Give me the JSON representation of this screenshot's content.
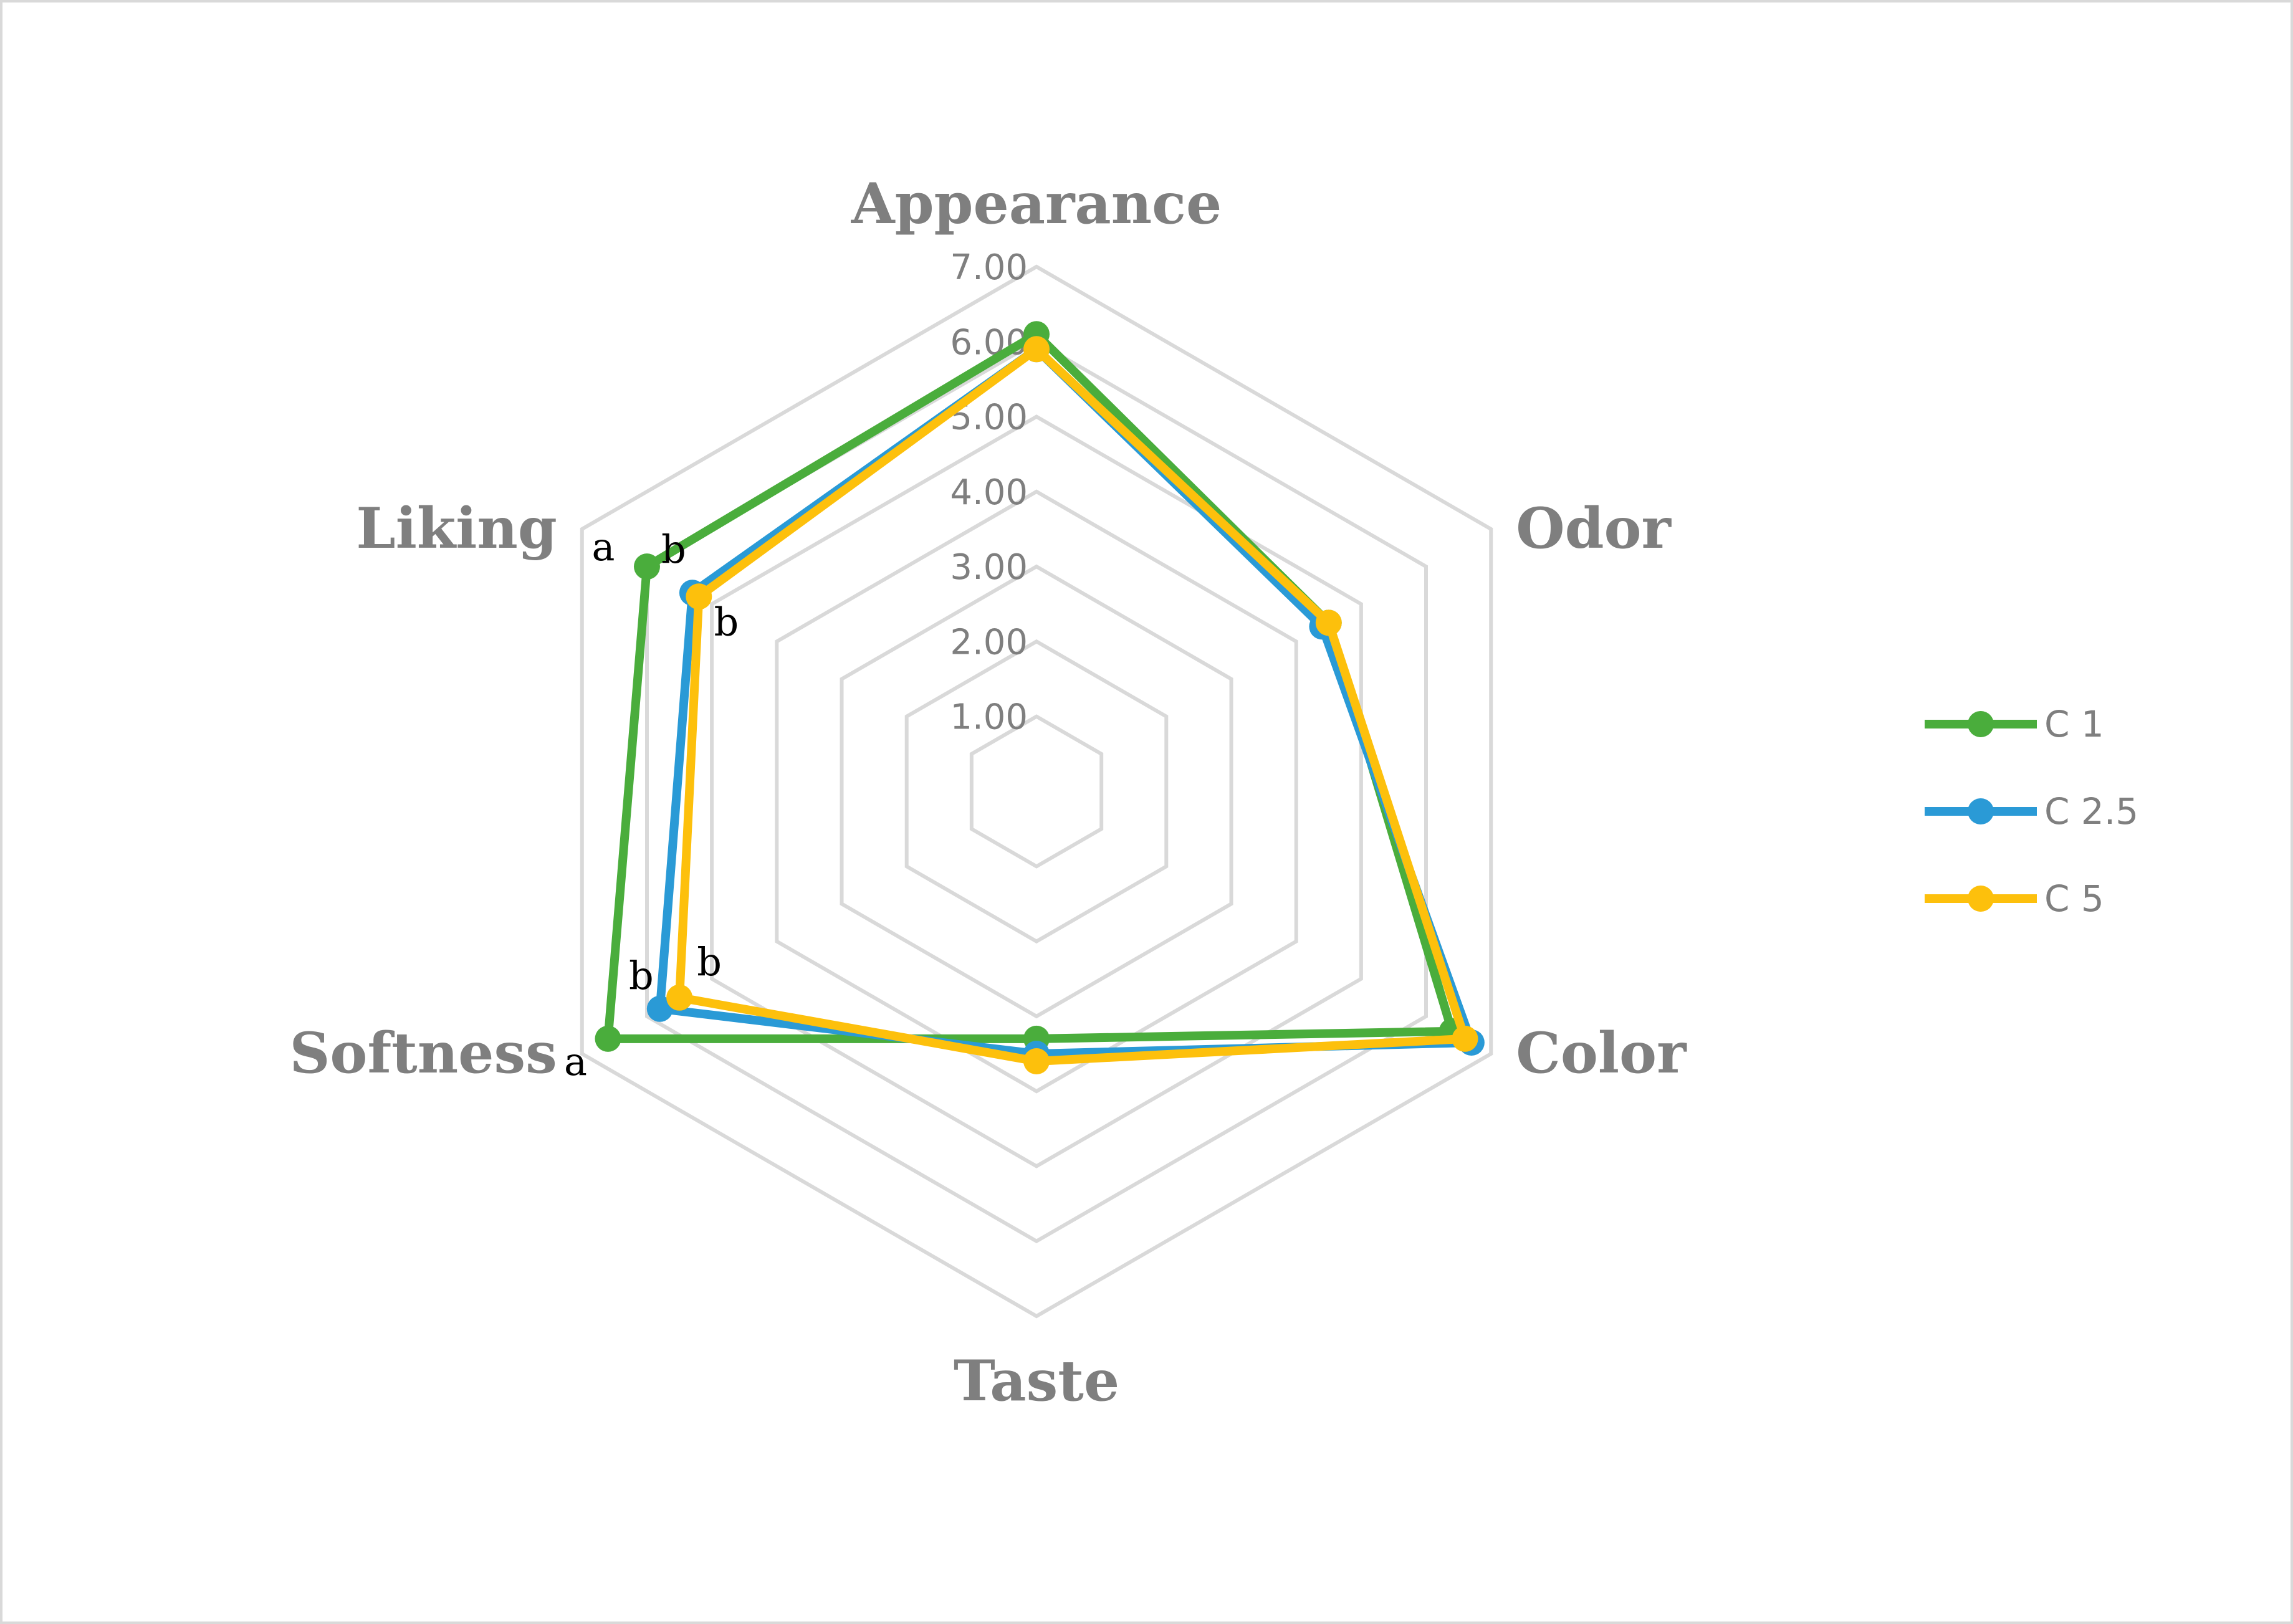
{
  "chart_data": {
    "type": "radar",
    "title": "",
    "axes": [
      "Appearance",
      "Odor",
      "Color",
      "Taste",
      "Softness",
      "Liking"
    ],
    "rmin": 1,
    "rmax": 7,
    "ticks": [
      "1.00",
      "2.00",
      "3.00",
      "4.00",
      "5.00",
      "6.00",
      "7.00"
    ],
    "grid": true,
    "legend_position": "right",
    "series": [
      {
        "name": "C 1",
        "color": "#4aad3c",
        "values": [
          6.1,
          4.5,
          6.4,
          3.3,
          6.6,
          6.0
        ]
      },
      {
        "name": "C 2.5",
        "color": "#2a9ad6",
        "values": [
          5.9,
          4.4,
          6.7,
          3.5,
          5.8,
          5.3
        ]
      },
      {
        "name": "C 5",
        "color": "#fdc00c",
        "values": [
          5.9,
          4.5,
          6.6,
          3.6,
          5.5,
          5.2
        ]
      }
    ],
    "annotations": [
      {
        "axis": "Liking",
        "series": "C 1",
        "text": "a"
      },
      {
        "axis": "Liking",
        "series": "C 2.5",
        "text": "b"
      },
      {
        "axis": "Liking",
        "series": "C 5",
        "text": "b"
      },
      {
        "axis": "Softness",
        "series": "C 1",
        "text": "a"
      },
      {
        "axis": "Softness",
        "series": "C 2.5",
        "text": "b"
      },
      {
        "axis": "Softness",
        "series": "C 5",
        "text": "b"
      }
    ]
  }
}
